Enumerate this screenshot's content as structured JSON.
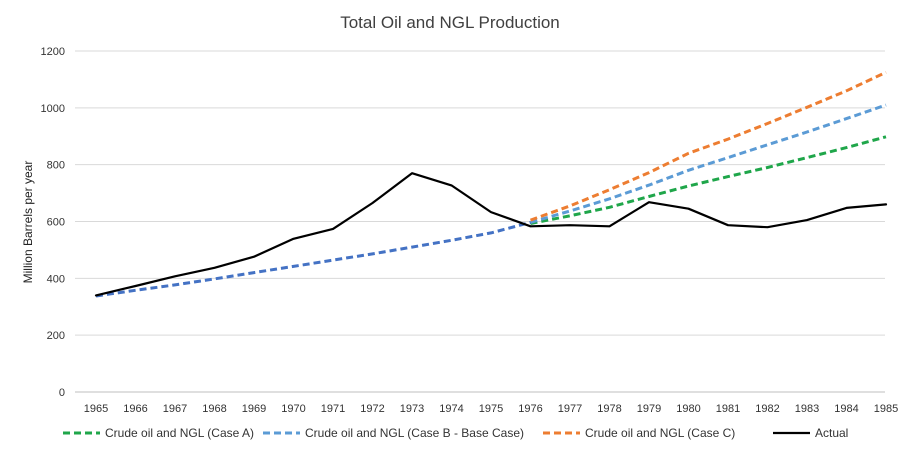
{
  "chart_data": {
    "type": "line",
    "title": "Total Oil and NGL Production",
    "xlabel": "",
    "ylabel": "Million Barrels per year",
    "ylim": [
      0,
      1200
    ],
    "yticks": [
      0,
      200,
      400,
      600,
      800,
      1000,
      1200
    ],
    "x": [
      1965,
      1966,
      1967,
      1968,
      1969,
      1970,
      1971,
      1972,
      1973,
      1974,
      1975,
      1976,
      1977,
      1978,
      1979,
      1980,
      1981,
      1982,
      1983,
      1984,
      1985
    ],
    "grid": true,
    "legend_position": "bottom",
    "series": [
      {
        "name": "Crude oil and NGL (Case A)",
        "color": "#1fa64a",
        "dash": true,
        "x": [
          1976,
          1977,
          1978,
          1979,
          1980,
          1981,
          1982,
          1983,
          1984,
          1985
        ],
        "values": [
          593,
          620,
          650,
          688,
          725,
          758,
          790,
          825,
          860,
          898
        ]
      },
      {
        "name": "Crude oil and NGL (Case B - Base Case)",
        "color": "#5b9bd5",
        "dash": true,
        "x": [
          1976,
          1977,
          1978,
          1979,
          1980,
          1981,
          1982,
          1983,
          1984,
          1985
        ],
        "values": [
          597,
          637,
          680,
          728,
          780,
          825,
          870,
          915,
          962,
          1010
        ]
      },
      {
        "name": "Crude oil and NGL (Case C)",
        "color": "#ed7d31",
        "dash": true,
        "x": [
          1976,
          1977,
          1978,
          1979,
          1980,
          1981,
          1982,
          1983,
          1984,
          1985
        ],
        "values": [
          605,
          655,
          712,
          772,
          840,
          890,
          945,
          1002,
          1060,
          1125
        ]
      },
      {
        "name": "",
        "color": "#4472c4",
        "dash": true,
        "x": [
          1965,
          1966,
          1967,
          1968,
          1969,
          1970,
          1971,
          1972,
          1973,
          1974,
          1975,
          1976
        ],
        "values": [
          338,
          358,
          377,
          398,
          420,
          442,
          464,
          486,
          510,
          534,
          560,
          597
        ]
      },
      {
        "name": "Actual",
        "color": "#000000",
        "dash": false,
        "x": [
          1965,
          1966,
          1967,
          1968,
          1969,
          1970,
          1971,
          1972,
          1973,
          1974,
          1975,
          1976,
          1977,
          1978,
          1979,
          1980,
          1981,
          1982,
          1983,
          1984,
          1985
        ],
        "values": [
          340,
          373,
          407,
          437,
          476,
          539,
          574,
          665,
          770,
          727,
          633,
          583,
          587,
          583,
          668,
          645,
          587,
          580,
          605,
          648,
          660
        ]
      }
    ]
  }
}
